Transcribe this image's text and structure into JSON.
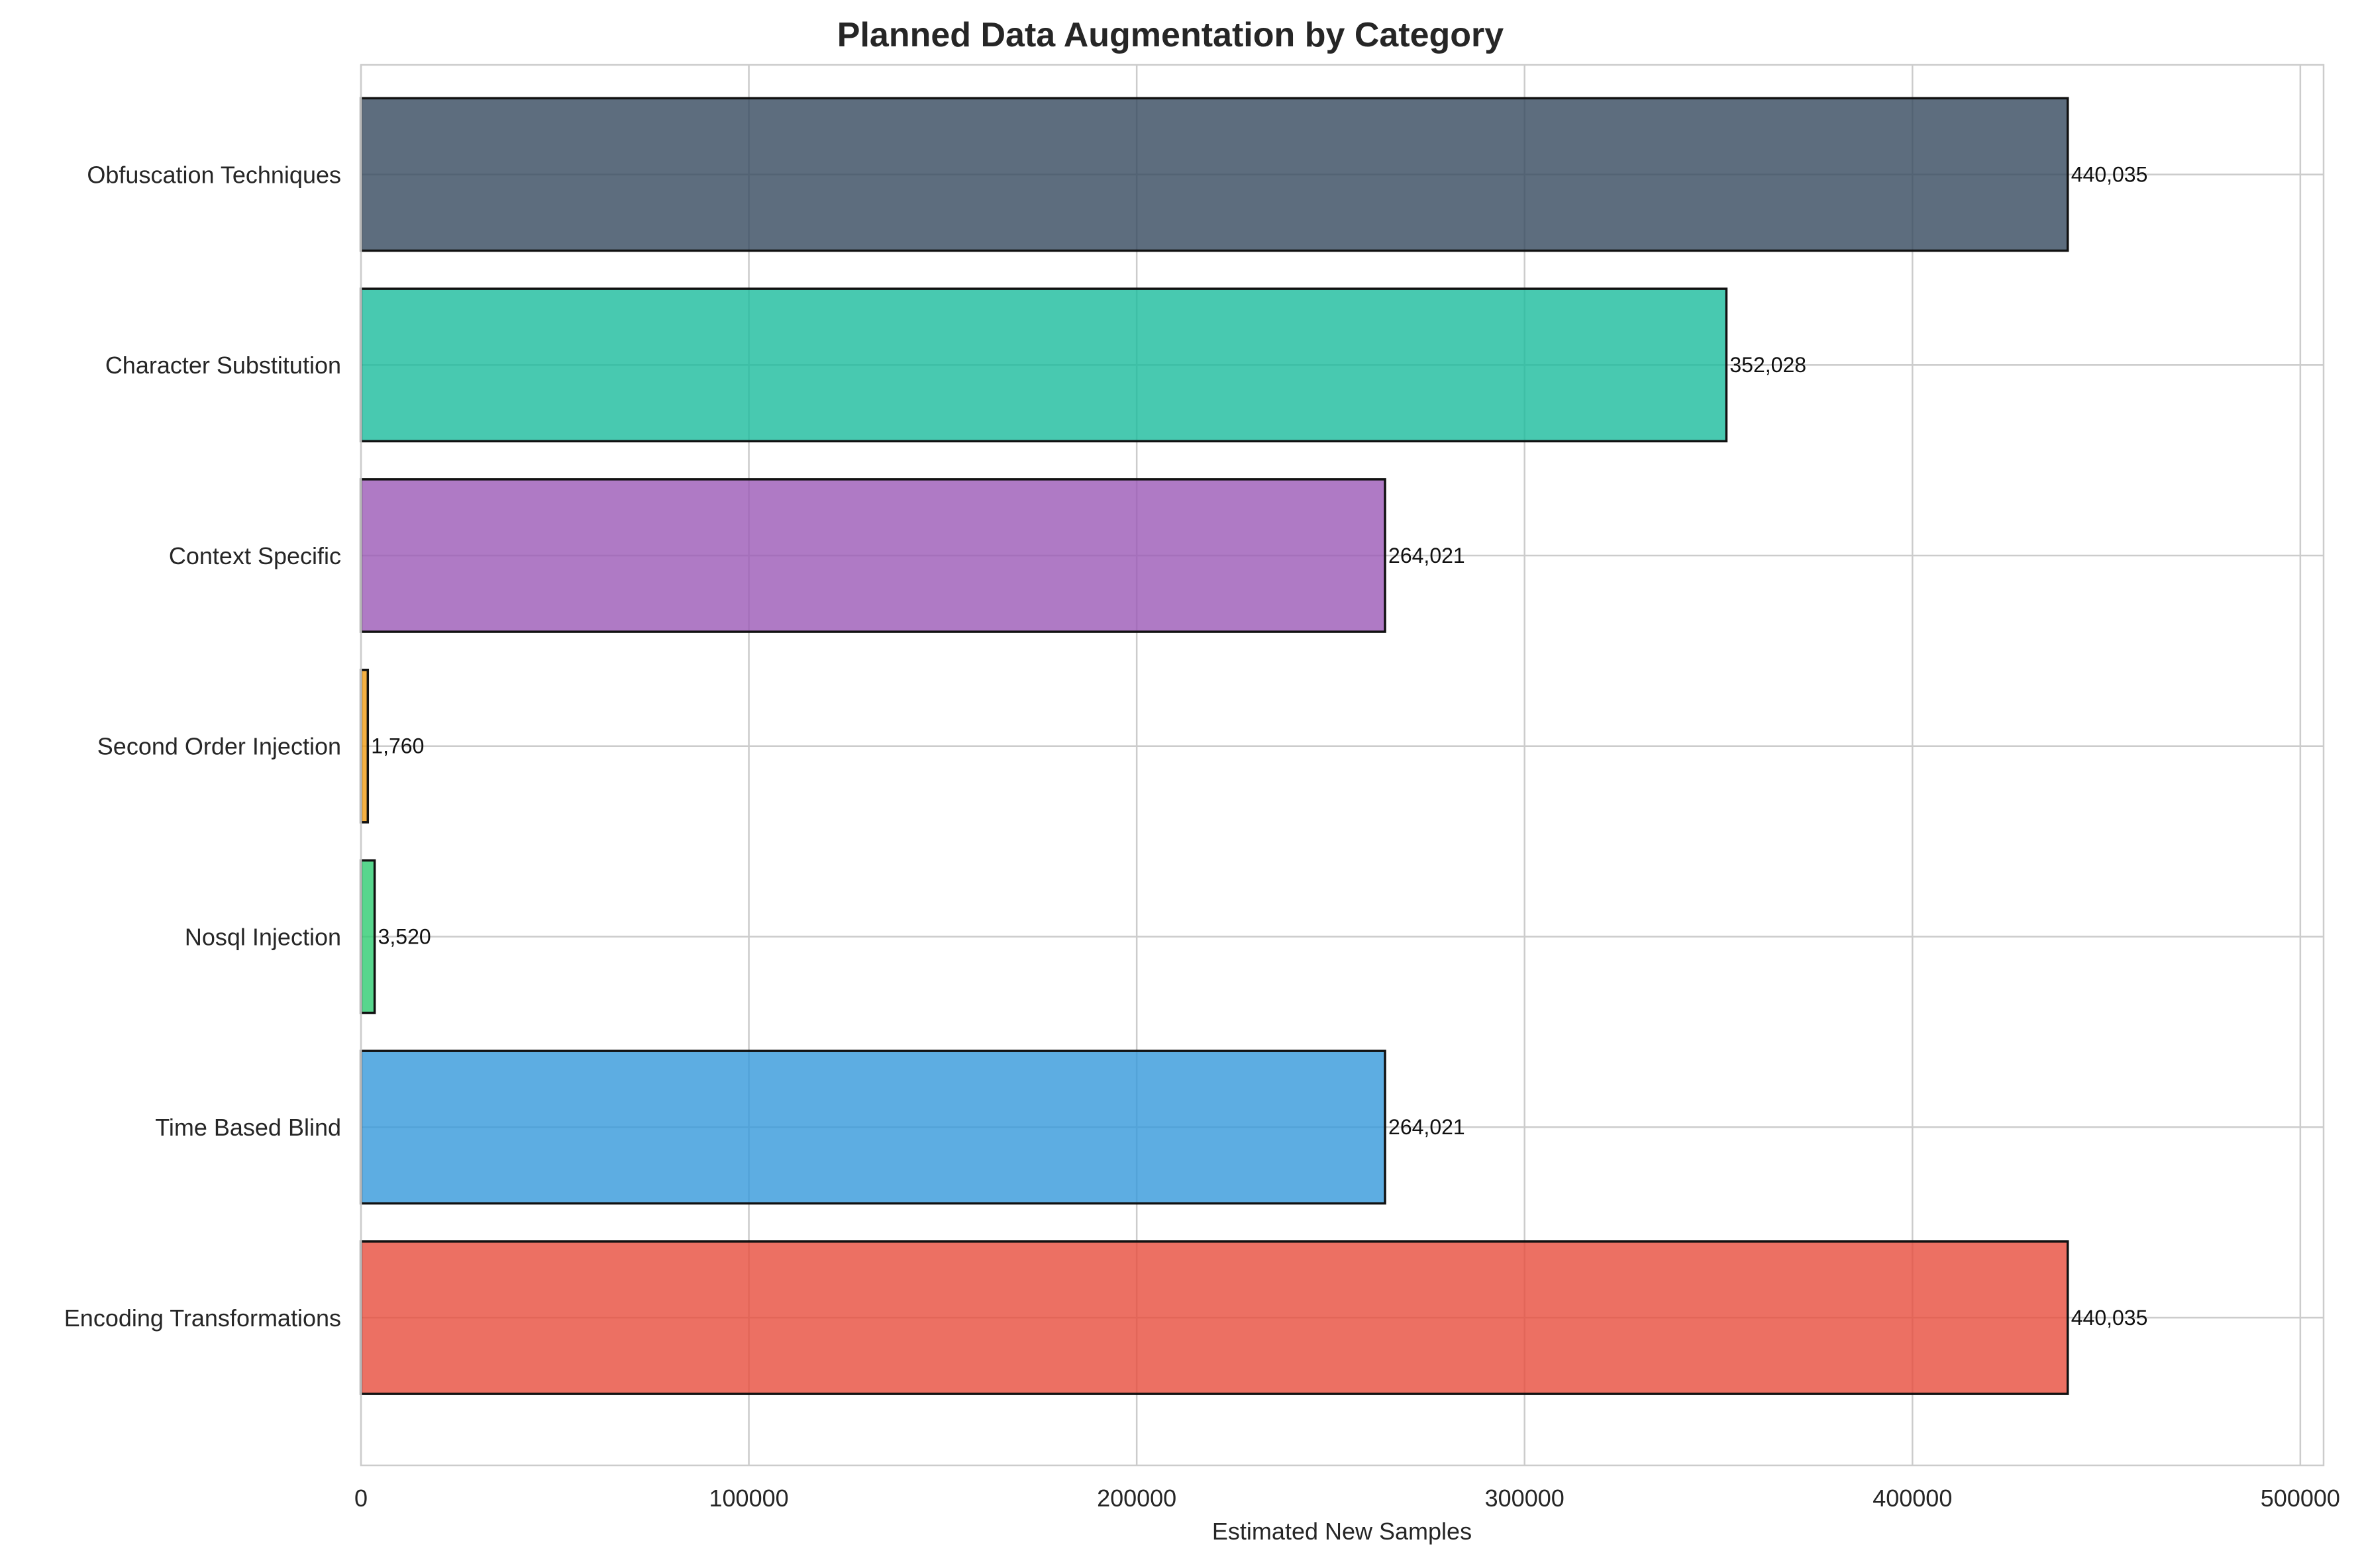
{
  "chart_data": {
    "type": "bar",
    "orientation": "horizontal",
    "title": "Planned Data Augmentation by Category",
    "xlabel": "Estimated New Samples",
    "ylabel": "",
    "xlim": [
      0,
      506000
    ],
    "xticks": [
      0,
      100000,
      200000,
      300000,
      400000,
      500000
    ],
    "xtick_labels": [
      "0",
      "100000",
      "200000",
      "300000",
      "400000",
      "500000"
    ],
    "grid": true,
    "categories": [
      "Obfuscation Techniques",
      "Character Substitution",
      "Context Specific",
      "Second Order Injection",
      "Nosql Injection",
      "Time Based Blind",
      "Encoding Transformations"
    ],
    "values": [
      440035,
      352028,
      264021,
      1760,
      3520,
      264021,
      440035
    ],
    "value_labels": [
      "440,035",
      "352,028",
      "264,021",
      "1,760",
      "3,520",
      "264,021",
      "440,035"
    ],
    "colors": [
      "#34495e",
      "#1abc9c",
      "#9b59b6",
      "#f39c12",
      "#2ecc71",
      "#3498db",
      "#e74c3c"
    ]
  }
}
